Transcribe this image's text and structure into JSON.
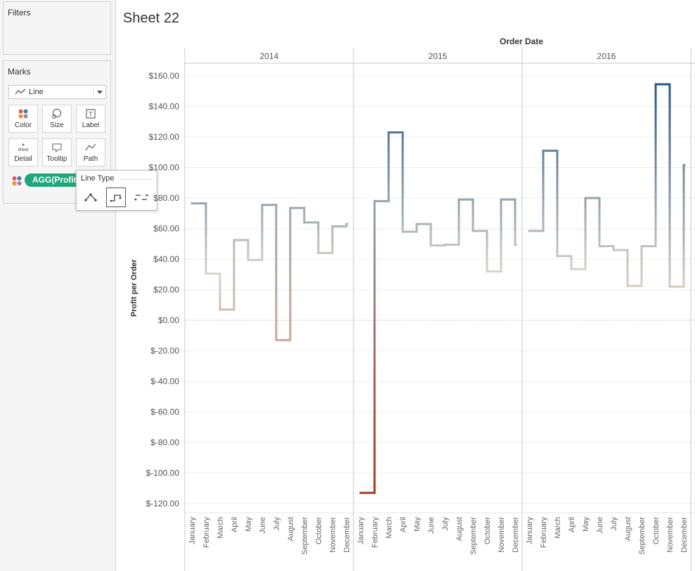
{
  "left_pane": {
    "filters_title": "Filters",
    "marks_title": "Marks",
    "mark_type": "Line",
    "buttons": {
      "color": "Color",
      "size": "Size",
      "label": "Label",
      "detail": "Detail",
      "tooltip": "Tooltip",
      "path": "Path"
    },
    "pill": "AGG(Profit"
  },
  "line_type_popup": {
    "title": "Line Type",
    "options": [
      "linear-line-icon",
      "step-line-icon",
      "jump-line-icon"
    ],
    "selected": "step-line-icon"
  },
  "sheet": {
    "title": "Sheet 22"
  },
  "chart_data": {
    "type": "line",
    "line_style": "step",
    "column_header": "Order Date",
    "years": [
      "2014",
      "2015",
      "2016"
    ],
    "categories": [
      "January",
      "February",
      "March",
      "April",
      "May",
      "June",
      "July",
      "August",
      "September",
      "October",
      "November",
      "December"
    ],
    "ylabel": "Profit per Order",
    "ylim": [
      -128,
      168
    ],
    "yticks": [
      160,
      140,
      120,
      100,
      80,
      60,
      40,
      20,
      0,
      -20,
      -40,
      -60,
      -80,
      -100,
      -120
    ],
    "ytick_labels": [
      "$160.00",
      "$140.00",
      "$120.00",
      "$100.00",
      "$80.00",
      "$60.00",
      "$40.00",
      "$20.00",
      "$0.00",
      "$-20.00",
      "$-40.00",
      "$-60.00",
      "$-80.00",
      "$-100.00",
      "$-120.00"
    ],
    "series": [
      {
        "year": "2014",
        "values": [
          76.5,
          30.5,
          7,
          52.5,
          39.5,
          75.5,
          -13,
          73.5,
          64,
          44,
          61.5,
          63
        ]
      },
      {
        "year": "2015",
        "values": [
          -113,
          78,
          123,
          58,
          63,
          49,
          49.5,
          79,
          58.5,
          32,
          79,
          49.5
        ]
      },
      {
        "year": "2016",
        "values": [
          58.5,
          111,
          42,
          33.5,
          80,
          48.5,
          46,
          22.5,
          48.5,
          154.5,
          22,
          101.5
        ]
      }
    ],
    "color_scale": {
      "low": "#9e3d22",
      "mid": "#d9d5c9",
      "high": "#2a5783"
    },
    "zero_line": true,
    "grid": true
  }
}
